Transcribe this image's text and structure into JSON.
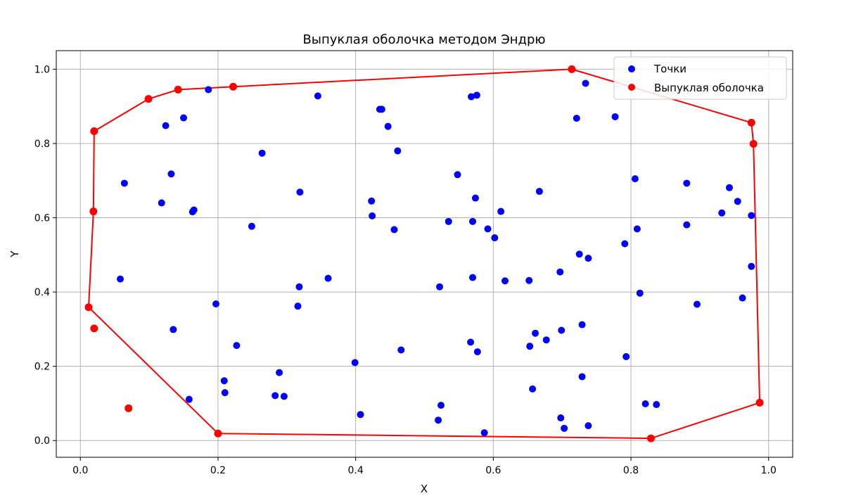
{
  "chart_data": {
    "type": "scatter",
    "title": "Выпуклая оболочка методом Эндрю",
    "xlabel": "X",
    "ylabel": "Y",
    "xlim": [
      -0.035,
      1.035
    ],
    "ylim": [
      -0.045,
      1.05
    ],
    "xticks": [
      0.0,
      0.2,
      0.4,
      0.6,
      0.8,
      1.0
    ],
    "xtick_labels": [
      "0.0",
      "0.2",
      "0.4",
      "0.6",
      "0.8",
      "1.0"
    ],
    "yticks": [
      0.0,
      0.2,
      0.4,
      0.6,
      0.8,
      1.0
    ],
    "ytick_labels": [
      "0.0",
      "0.2",
      "0.4",
      "0.6",
      "0.8",
      "1.0"
    ],
    "grid": true,
    "legend_position": "top-right",
    "series": [
      {
        "name": "Точки",
        "kind": "scatter",
        "color": "#0000ff",
        "points": [
          [
            0.019,
            0.617
          ],
          [
            0.058,
            0.435
          ],
          [
            0.064,
            0.693
          ],
          [
            0.118,
            0.64
          ],
          [
            0.124,
            0.848
          ],
          [
            0.132,
            0.718
          ],
          [
            0.135,
            0.299
          ],
          [
            0.15,
            0.869
          ],
          [
            0.158,
            0.111
          ],
          [
            0.163,
            0.616
          ],
          [
            0.165,
            0.621
          ],
          [
            0.186,
            0.945
          ],
          [
            0.197,
            0.368
          ],
          [
            0.209,
            0.161
          ],
          [
            0.21,
            0.129
          ],
          [
            0.227,
            0.256
          ],
          [
            0.249,
            0.577
          ],
          [
            0.264,
            0.774
          ],
          [
            0.283,
            0.121
          ],
          [
            0.289,
            0.183
          ],
          [
            0.296,
            0.119
          ],
          [
            0.316,
            0.362
          ],
          [
            0.318,
            0.414
          ],
          [
            0.319,
            0.669
          ],
          [
            0.345,
            0.928
          ],
          [
            0.36,
            0.437
          ],
          [
            0.399,
            0.21
          ],
          [
            0.407,
            0.07
          ],
          [
            0.423,
            0.645
          ],
          [
            0.424,
            0.605
          ],
          [
            0.435,
            0.892
          ],
          [
            0.438,
            0.892
          ],
          [
            0.447,
            0.846
          ],
          [
            0.456,
            0.568
          ],
          [
            0.461,
            0.78
          ],
          [
            0.466,
            0.244
          ],
          [
            0.52,
            0.055
          ],
          [
            0.522,
            0.414
          ],
          [
            0.524,
            0.095
          ],
          [
            0.535,
            0.59
          ],
          [
            0.548,
            0.716
          ],
          [
            0.567,
            0.265
          ],
          [
            0.568,
            0.926
          ],
          [
            0.57,
            0.59
          ],
          [
            0.57,
            0.439
          ],
          [
            0.574,
            0.653
          ],
          [
            0.576,
            0.93
          ],
          [
            0.577,
            0.239
          ],
          [
            0.587,
            0.021
          ],
          [
            0.592,
            0.57
          ],
          [
            0.602,
            0.546
          ],
          [
            0.611,
            0.617
          ],
          [
            0.617,
            0.43
          ],
          [
            0.652,
            0.431
          ],
          [
            0.653,
            0.254
          ],
          [
            0.657,
            0.139
          ],
          [
            0.661,
            0.289
          ],
          [
            0.667,
            0.671
          ],
          [
            0.677,
            0.271
          ],
          [
            0.697,
            0.454
          ],
          [
            0.698,
            0.061
          ],
          [
            0.699,
            0.297
          ],
          [
            0.703,
            0.033
          ],
          [
            0.721,
            0.868
          ],
          [
            0.725,
            0.502
          ],
          [
            0.729,
            0.312
          ],
          [
            0.729,
            0.172
          ],
          [
            0.734,
            0.962
          ],
          [
            0.738,
            0.491
          ],
          [
            0.738,
            0.04
          ],
          [
            0.777,
            0.872
          ],
          [
            0.791,
            0.53
          ],
          [
            0.793,
            0.226
          ],
          [
            0.806,
            0.705
          ],
          [
            0.809,
            0.57
          ],
          [
            0.813,
            0.397
          ],
          [
            0.821,
            0.099
          ],
          [
            0.837,
            0.097
          ],
          [
            0.881,
            0.693
          ],
          [
            0.881,
            0.581
          ],
          [
            0.896,
            0.367
          ],
          [
            0.932,
            0.613
          ],
          [
            0.943,
            0.681
          ],
          [
            0.955,
            0.644
          ],
          [
            0.962,
            0.384
          ],
          [
            0.975,
            0.469
          ],
          [
            0.975,
            0.606
          ]
        ]
      },
      {
        "name": "Выпуклая оболочка",
        "kind": "line+markers",
        "color": "#ff0000",
        "points": [
          [
            0.012,
            0.359
          ],
          [
            0.2,
            0.019
          ],
          [
            0.829,
            0.006
          ],
          [
            0.987,
            0.102
          ],
          [
            0.978,
            0.799
          ],
          [
            0.975,
            0.856
          ],
          [
            0.714,
            1.0
          ],
          [
            0.222,
            0.953
          ],
          [
            0.142,
            0.945
          ],
          [
            0.099,
            0.92
          ],
          [
            0.02,
            0.833
          ],
          [
            0.019,
            0.617
          ],
          [
            0.012,
            0.359
          ]
        ],
        "extra_points": [
          [
            0.07,
            0.087
          ],
          [
            0.02,
            0.302
          ]
        ]
      }
    ]
  }
}
